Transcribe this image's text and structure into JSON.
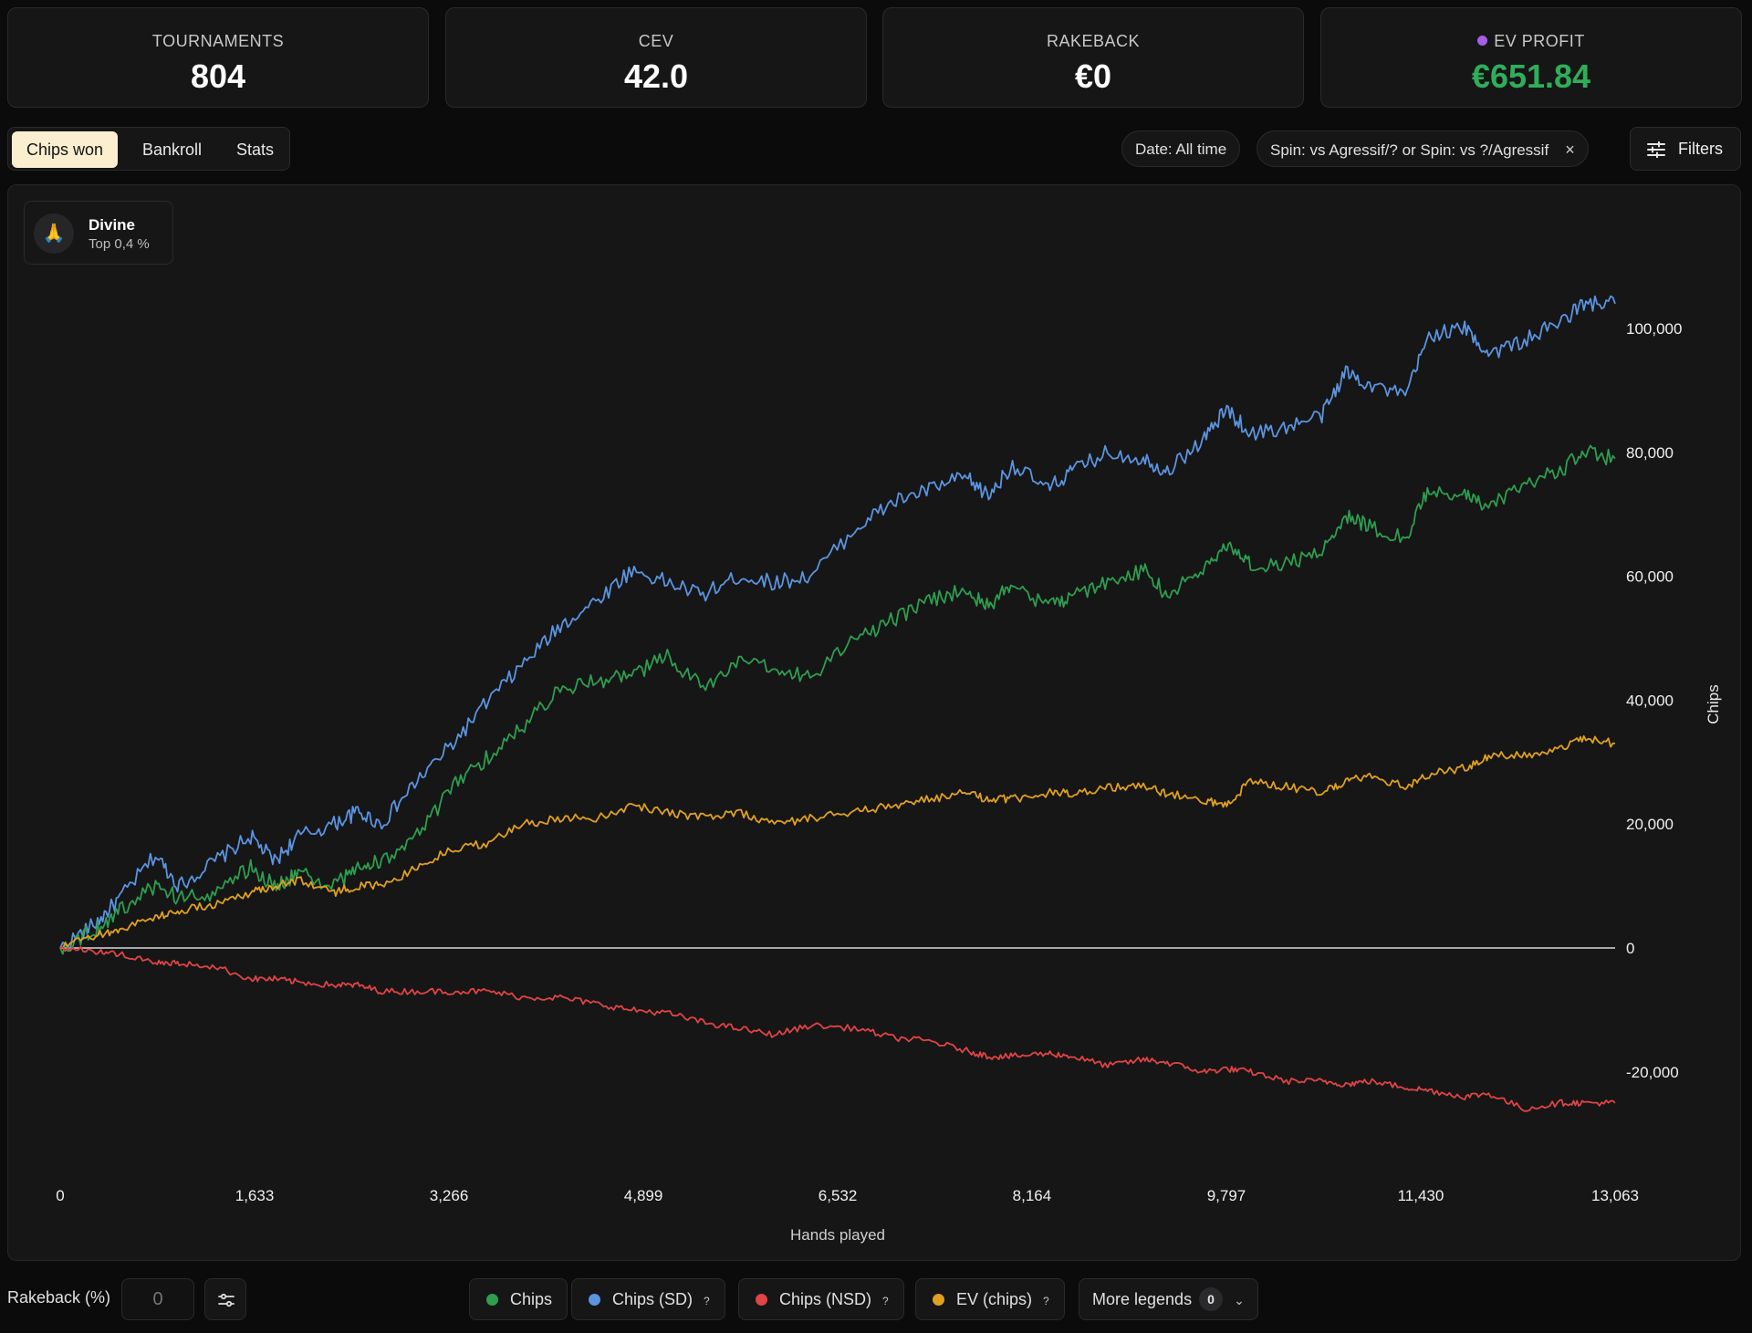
{
  "kpis": [
    {
      "label": "TOURNAMENTS",
      "value": "804"
    },
    {
      "label": "CEV",
      "value": "42.0"
    },
    {
      "label": "RAKEBACK",
      "value": "€0"
    },
    {
      "label": "EV PROFIT",
      "value": "€651.84",
      "value_color": "#2fae5a",
      "dot_color": "#a55ee6"
    }
  ],
  "tabs": [
    {
      "label": "Chips won",
      "active": true
    },
    {
      "label": "Bankroll",
      "active": false
    },
    {
      "label": "Stats",
      "active": false
    }
  ],
  "filter_pills": {
    "date": "Date: All time",
    "spin": "Spin: vs Agressif/? or Spin: vs ?/Agressif",
    "remove": "×"
  },
  "filters_button": "Filters",
  "badge": {
    "icon": "pray-hands-icon",
    "glyph": "🙏",
    "title": "Divine",
    "subtitle": "Top 0,4 %"
  },
  "chart_data": {
    "type": "line",
    "xlabel": "Hands played",
    "ylabel": "Chips",
    "xlim": [
      0,
      13063
    ],
    "ylim": [
      -35000,
      105000
    ],
    "x_ticks": [
      "0",
      "1,633",
      "3,266",
      "4,899",
      "6,532",
      "8,164",
      "9,797",
      "11,430",
      "13,063"
    ],
    "x_tick_values": [
      0,
      1633,
      3266,
      4899,
      6532,
      8164,
      9797,
      11430,
      13063
    ],
    "y_ticks": [
      "-20,000",
      "0",
      "20,000",
      "40,000",
      "60,000",
      "80,000",
      "100,000"
    ],
    "y_tick_values": [
      -20000,
      0,
      20000,
      40000,
      60000,
      80000,
      100000
    ],
    "grid": false,
    "series": [
      {
        "name": "Chips (SD)",
        "color": "#5b94e0",
        "x": [
          0,
          300,
          500,
          800,
          1000,
          1300,
          1600,
          1800,
          2000,
          2300,
          2500,
          2700,
          3000,
          3300,
          3600,
          3900,
          4200,
          4500,
          4800,
          5100,
          5400,
          5700,
          6000,
          6300,
          6700,
          7000,
          7300,
          7600,
          7800,
          8000,
          8300,
          8500,
          8800,
          9100,
          9300,
          9600,
          9800,
          10000,
          10300,
          10600,
          10800,
          11000,
          11300,
          11500,
          11800,
          12000,
          12300,
          12600,
          12800,
          13063
        ],
        "y": [
          0,
          4000,
          8000,
          15000,
          10000,
          14000,
          18000,
          14000,
          18000,
          20000,
          22000,
          20000,
          27000,
          33000,
          40000,
          46000,
          52000,
          56000,
          61000,
          59000,
          57000,
          60000,
          59000,
          60000,
          68000,
          72000,
          74000,
          76000,
          73000,
          78000,
          74000,
          77000,
          80000,
          79000,
          77000,
          82000,
          87000,
          83000,
          84000,
          86000,
          93000,
          91000,
          89000,
          99000,
          100000,
          96000,
          98000,
          101000,
          104000,
          104000
        ]
      },
      {
        "name": "Chips",
        "color": "#2e9e4f",
        "x": [
          0,
          300,
          500,
          800,
          1000,
          1300,
          1600,
          1800,
          2000,
          2300,
          2500,
          2700,
          3000,
          3300,
          3600,
          3900,
          4200,
          4500,
          4800,
          5100,
          5400,
          5700,
          6000,
          6300,
          6700,
          7000,
          7300,
          7600,
          7800,
          8000,
          8300,
          8500,
          8800,
          9100,
          9300,
          9600,
          9800,
          10000,
          10300,
          10600,
          10800,
          11000,
          11300,
          11500,
          11800,
          12000,
          12300,
          12600,
          12800,
          13063
        ],
        "y": [
          0,
          3000,
          6000,
          10000,
          8000,
          9000,
          13000,
          10000,
          12000,
          10000,
          13000,
          14000,
          18000,
          26000,
          31000,
          36000,
          42000,
          43000,
          44000,
          47000,
          42000,
          46000,
          45000,
          44000,
          50000,
          53000,
          56000,
          58000,
          55000,
          59000,
          55000,
          57000,
          59000,
          61000,
          57000,
          61000,
          65000,
          62000,
          62000,
          64000,
          70000,
          68000,
          66000,
          74000,
          73000,
          71000,
          75000,
          77000,
          80000,
          79000
        ]
      },
      {
        "name": "EV (chips)",
        "color": "#e0a020",
        "x": [
          0,
          300,
          500,
          800,
          1000,
          1300,
          1600,
          1800,
          2000,
          2300,
          2500,
          2700,
          3000,
          3300,
          3600,
          3900,
          4200,
          4500,
          4800,
          5100,
          5400,
          5700,
          6000,
          6300,
          6700,
          7000,
          7300,
          7600,
          7800,
          8000,
          8300,
          8500,
          8800,
          9100,
          9300,
          9600,
          9800,
          10000,
          10300,
          10600,
          10800,
          11000,
          11300,
          11500,
          11800,
          12000,
          12300,
          12600,
          12800,
          13063
        ],
        "y": [
          0,
          2000,
          3000,
          5000,
          6000,
          7000,
          9000,
          10000,
          11000,
          9000,
          10000,
          10000,
          13000,
          16000,
          17000,
          20000,
          21000,
          21000,
          23000,
          22000,
          21000,
          22000,
          20000,
          21000,
          22000,
          23000,
          24000,
          25000,
          24000,
          24000,
          25000,
          25000,
          26000,
          26000,
          25000,
          24000,
          23000,
          27000,
          26000,
          25000,
          27000,
          28000,
          26000,
          28000,
          29000,
          31000,
          31000,
          32000,
          34000,
          33000
        ]
      },
      {
        "name": "Chips (NSD)",
        "color": "#e04444",
        "x": [
          0,
          300,
          500,
          800,
          1000,
          1300,
          1600,
          1800,
          2000,
          2300,
          2500,
          2700,
          3000,
          3300,
          3600,
          3900,
          4200,
          4500,
          4800,
          5100,
          5400,
          5700,
          6000,
          6300,
          6700,
          7000,
          7300,
          7600,
          7800,
          8000,
          8300,
          8500,
          8800,
          9100,
          9300,
          9600,
          9800,
          10000,
          10300,
          10600,
          10800,
          11000,
          11300,
          11500,
          11800,
          12000,
          12300,
          12600,
          12800,
          13063
        ],
        "y": [
          0,
          -500,
          -1000,
          -2500,
          -2500,
          -3000,
          -5000,
          -5000,
          -5500,
          -6000,
          -6000,
          -7000,
          -7000,
          -7000,
          -7000,
          -8000,
          -8000,
          -9000,
          -10000,
          -10500,
          -12000,
          -13000,
          -14000,
          -12500,
          -13000,
          -14500,
          -15000,
          -16500,
          -17500,
          -17500,
          -17000,
          -17500,
          -19000,
          -18000,
          -18500,
          -20000,
          -19500,
          -20000,
          -21500,
          -21500,
          -22000,
          -21500,
          -22500,
          -23000,
          -24000,
          -23500,
          -26000,
          -25000,
          -25000,
          -25000
        ]
      }
    ]
  },
  "bottom": {
    "rakeback_label": "Rakeback (%)",
    "rakeback_placeholder": "0",
    "legends": [
      {
        "label": "Chips",
        "color": "#2e9e4f",
        "help": ""
      },
      {
        "label": "Chips (SD)",
        "color": "#5b94e0",
        "help": "?"
      },
      {
        "label": "Chips (NSD)",
        "color": "#e04444",
        "help": "?"
      },
      {
        "label": "EV (chips)",
        "color": "#e0a020",
        "help": "?"
      }
    ],
    "more_legends": {
      "label": "More legends",
      "count": "0"
    }
  }
}
